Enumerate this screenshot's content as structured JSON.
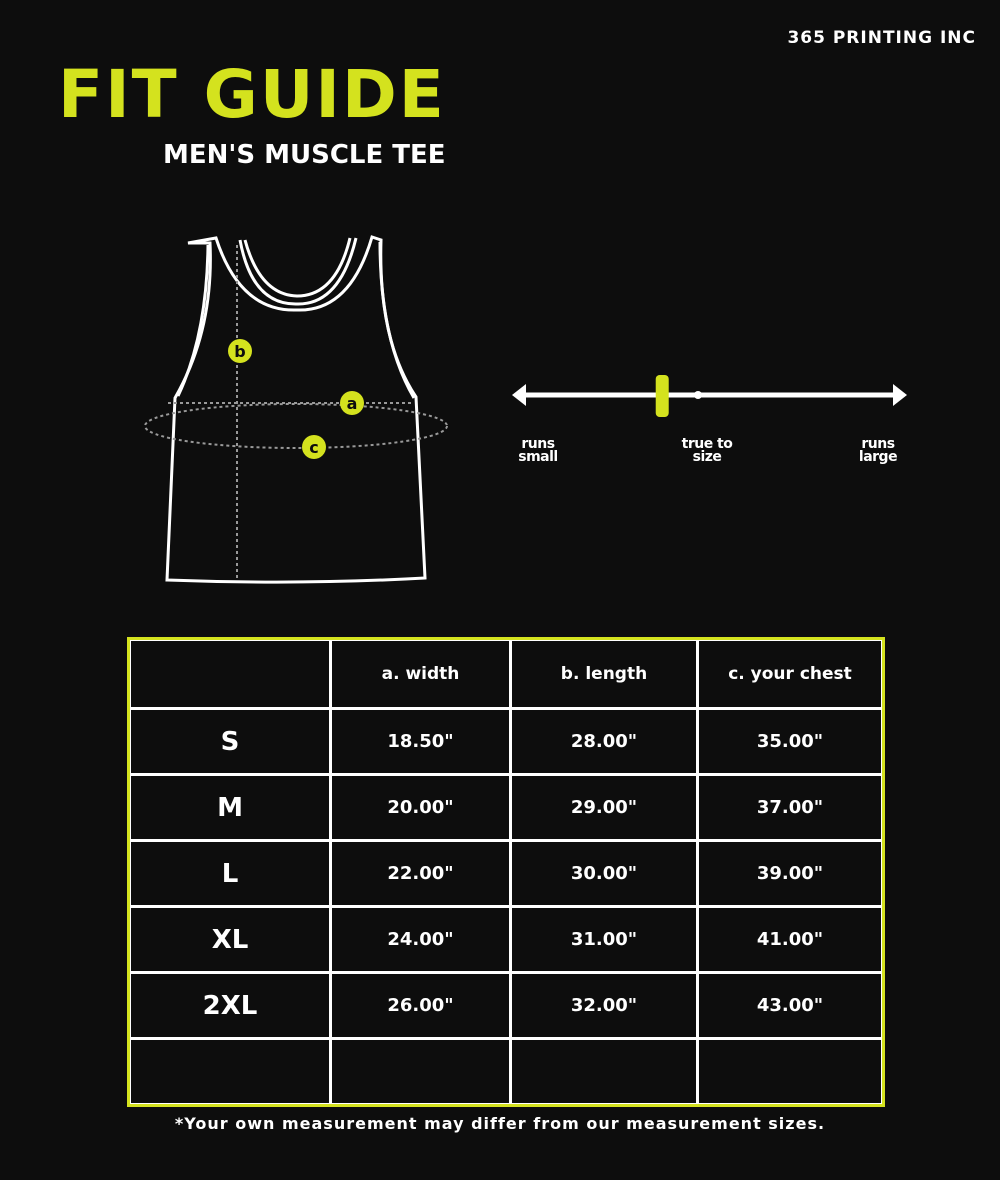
{
  "brand": "365 PRINTING INC",
  "title": "FIT GUIDE",
  "subtitle": "MEN'S MUSCLE TEE",
  "colors": {
    "accent": "#d4e21e",
    "background": "#0d0d0d",
    "lines": "#ffffff"
  },
  "diagram": {
    "labels": {
      "a": "a",
      "b": "b",
      "c": "c"
    }
  },
  "fit_scale": {
    "left": "runs small",
    "center": "true to size",
    "right": "runs large",
    "marker_position": 0.38
  },
  "table": {
    "headers": [
      "",
      "a. width",
      "b. length",
      "c. your chest"
    ],
    "rows": [
      [
        "S",
        "18.50\"",
        "28.00\"",
        "35.00\""
      ],
      [
        "M",
        "20.00\"",
        "29.00\"",
        "37.00\""
      ],
      [
        "L",
        "22.00\"",
        "30.00\"",
        "39.00\""
      ],
      [
        "XL",
        "24.00\"",
        "31.00\"",
        "41.00\""
      ],
      [
        "2XL",
        "26.00\"",
        "32.00\"",
        "43.00\""
      ],
      [
        "",
        "",
        "",
        ""
      ]
    ]
  },
  "note": "*Your own measurement may differ from our measurement sizes."
}
